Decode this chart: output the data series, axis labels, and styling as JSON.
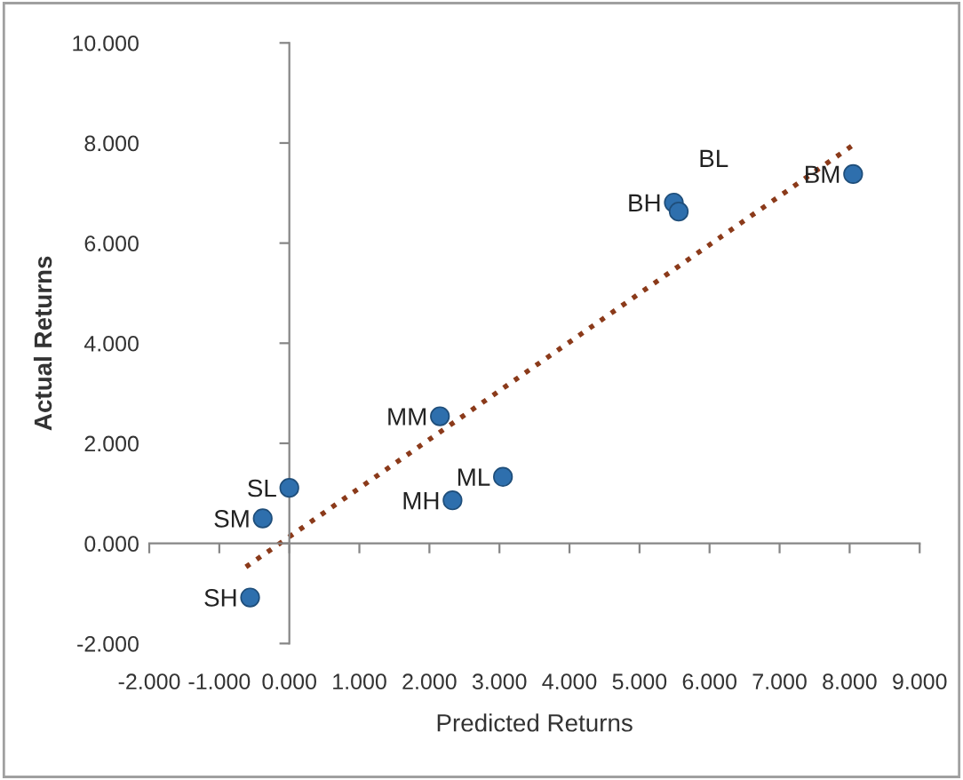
{
  "chart_data": {
    "type": "scatter",
    "xlabel": "Predicted Returns",
    "ylabel": "Actual Returns",
    "xlim": [
      -2,
      9
    ],
    "ylim": [
      -2,
      10
    ],
    "xticks": [
      {
        "value": -2,
        "label": "-2.000"
      },
      {
        "value": -1,
        "label": "-1.000"
      },
      {
        "value": 0,
        "label": "0.000"
      },
      {
        "value": 1,
        "label": "1.000"
      },
      {
        "value": 2,
        "label": "2.000"
      },
      {
        "value": 3,
        "label": "3.000"
      },
      {
        "value": 4,
        "label": "4.000"
      },
      {
        "value": 5,
        "label": "5.000"
      },
      {
        "value": 6,
        "label": "6.000"
      },
      {
        "value": 7,
        "label": "7.000"
      },
      {
        "value": 8,
        "label": "8.000"
      },
      {
        "value": 9,
        "label": "9.000"
      }
    ],
    "yticks": [
      {
        "value": -2,
        "label": "-2.000"
      },
      {
        "value": 0,
        "label": "0.000"
      },
      {
        "value": 2,
        "label": "2.000"
      },
      {
        "value": 4,
        "label": "4.000"
      },
      {
        "value": 6,
        "label": "6.000"
      },
      {
        "value": 8,
        "label": "8.000"
      },
      {
        "value": 10,
        "label": "10.000"
      }
    ],
    "legend": false,
    "marker": "circle",
    "series": [
      {
        "name": "BM",
        "color": "#2e6fad",
        "x": [
          8.05
        ],
        "values": [
          7.38
        ]
      },
      {
        "name": "BH",
        "color": "#2e6fad",
        "x": [
          5.49
        ],
        "values": [
          6.81
        ]
      },
      {
        "name": "BL",
        "color": "#2e6fad",
        "x": [
          5.56
        ],
        "values": [
          6.63
        ]
      },
      {
        "name": "MM",
        "color": "#2e6fad",
        "x": [
          2.15
        ],
        "values": [
          2.54
        ]
      },
      {
        "name": "ML",
        "color": "#2e6fad",
        "x": [
          3.05
        ],
        "values": [
          1.33
        ]
      },
      {
        "name": "MH",
        "color": "#2e6fad",
        "x": [
          2.33
        ],
        "values": [
          0.86
        ]
      },
      {
        "name": "SL",
        "color": "#2e6fad",
        "x": [
          0.0
        ],
        "values": [
          1.11
        ]
      },
      {
        "name": "SM",
        "color": "#2e6fad",
        "x": [
          -0.38
        ],
        "values": [
          0.5
        ]
      },
      {
        "name": "SH",
        "color": "#2e6fad",
        "x": [
          -0.56
        ],
        "values": [
          -1.08
        ]
      },
      {
        "type": "line",
        "color": "#8b3a1a",
        "line_style": "dotted",
        "marker": "none",
        "x": [
          -0.62,
          8.05
        ],
        "values": [
          -0.47,
          7.96
        ]
      }
    ]
  }
}
